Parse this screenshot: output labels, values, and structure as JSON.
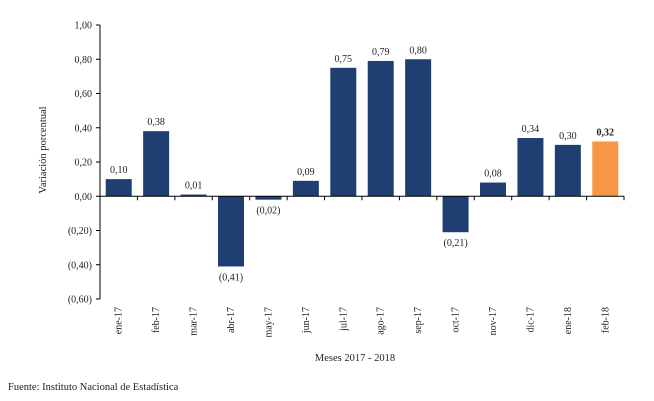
{
  "chart_data": {
    "type": "bar",
    "categories": [
      "ene-17",
      "feb-17",
      "mar-17",
      "abr-17",
      "may-17",
      "jun-17",
      "jul-17",
      "ago-17",
      "sep-17",
      "oct-17",
      "nov-17",
      "dic-17",
      "ene-18",
      "feb-18"
    ],
    "values": [
      0.1,
      0.38,
      0.01,
      -0.41,
      -0.02,
      0.09,
      0.75,
      0.79,
      0.8,
      -0.21,
      0.08,
      0.34,
      0.3,
      0.32
    ],
    "data_labels": [
      "0,10",
      "0,38",
      "0,01",
      "(0,41)",
      "(0,02)",
      "0,09",
      "0,75",
      "0,79",
      "0,80",
      "(0,21)",
      "0,08",
      "0,34",
      "0,30",
      "0,32"
    ],
    "highlight_index": 13,
    "xlabel": "Meses 2017 - 2018",
    "ylabel": "Variación porcentual",
    "ylim": [
      -0.6,
      1.0
    ],
    "yticks": [
      1.0,
      0.8,
      0.6,
      0.4,
      0.2,
      0.0,
      -0.2,
      -0.4,
      -0.6
    ],
    "ytick_labels": [
      "1,00",
      "0,80",
      "0,60",
      "0,40",
      "0,20",
      "0,00",
      "(0,20)",
      "(0,40)",
      "(0,60)"
    ],
    "grid": false,
    "legend": "none",
    "colors": {
      "bar": "#1f3f73",
      "highlight": "#f79646",
      "axis": "#000000"
    }
  },
  "source_note": "Fuente: Instituto Nacional de Estadística"
}
